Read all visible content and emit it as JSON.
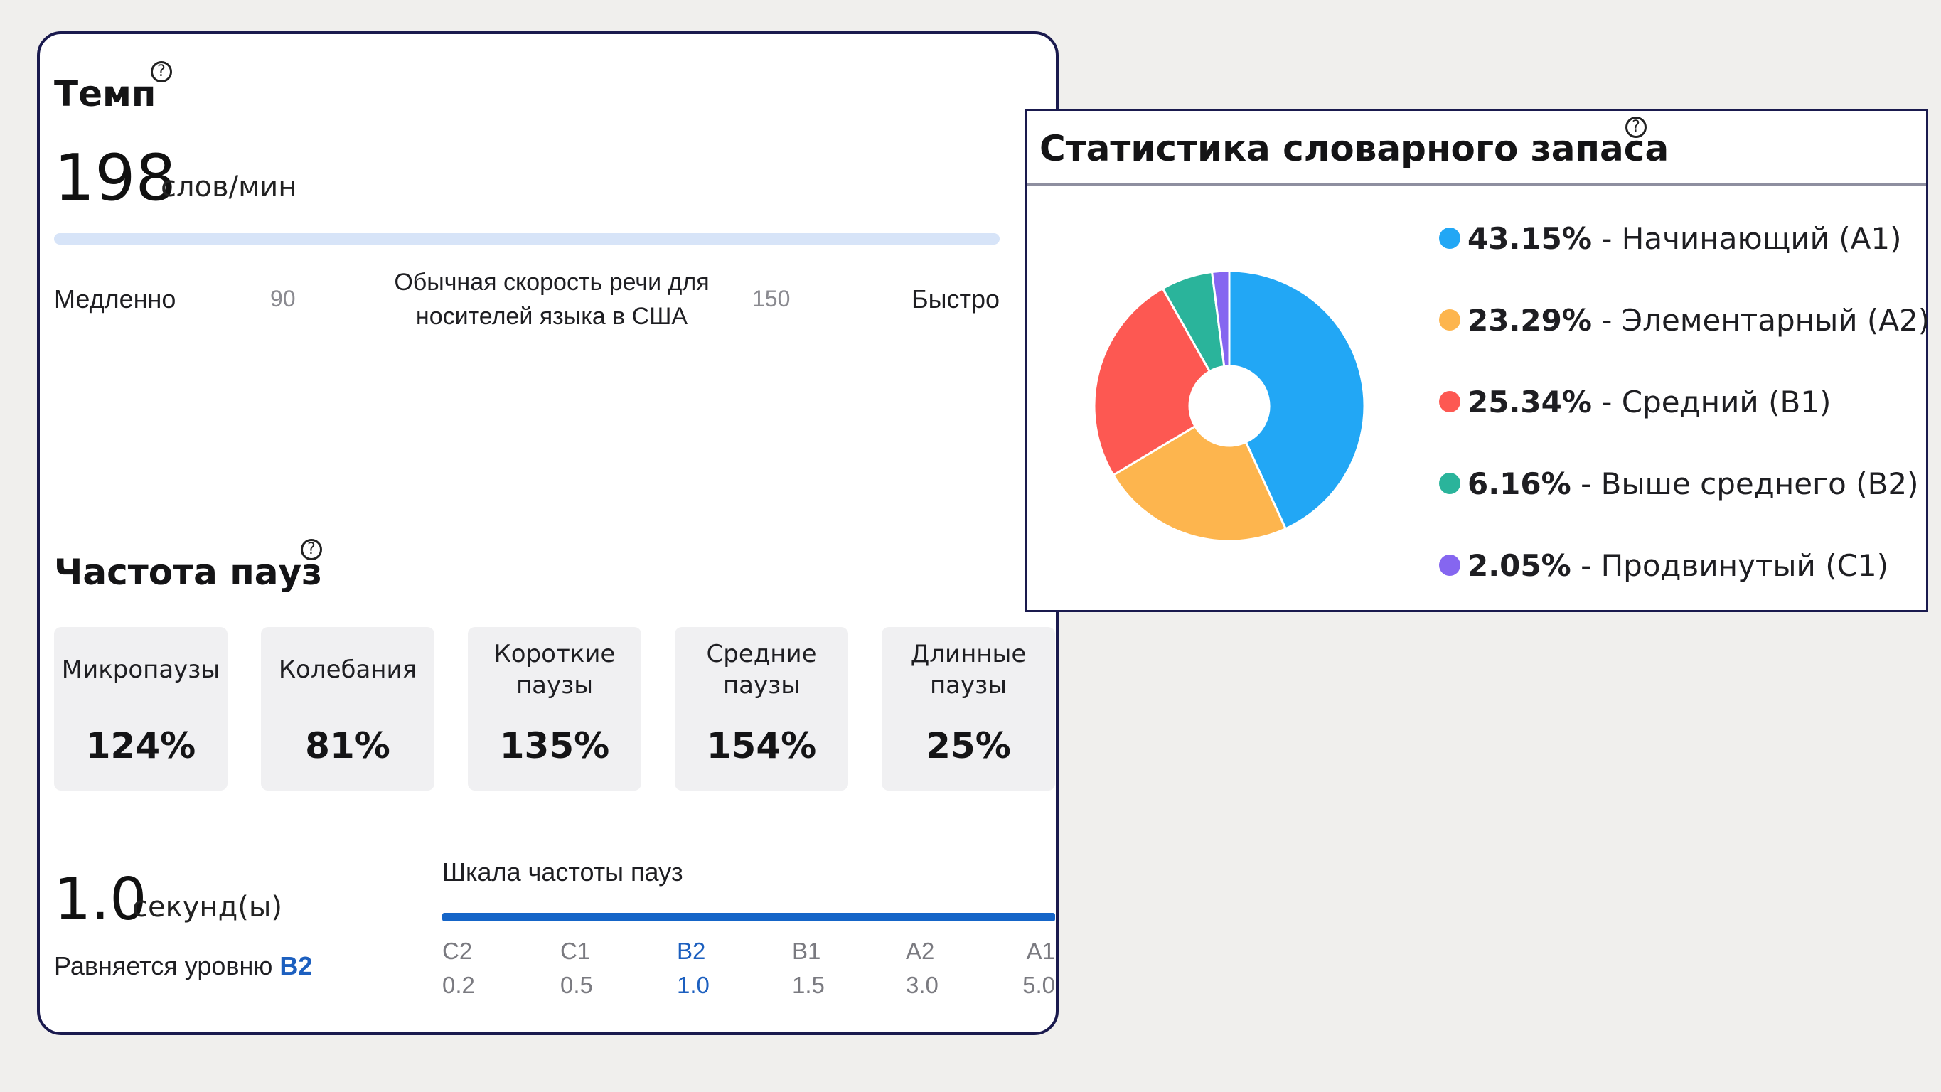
{
  "tempo": {
    "title": "Темп",
    "value": "198",
    "unit": "слов/мин",
    "slow_label": "Медленно",
    "fast_label": "Быстро",
    "low_mark": "90",
    "high_mark": "150",
    "normal_line1": "Обычная скорость речи для",
    "normal_line2": "носителей языка в США"
  },
  "pauses": {
    "title": "Частота пауз",
    "items": [
      {
        "line1": "Микропаузы",
        "line2": "",
        "value": "124%"
      },
      {
        "line1": "Колебания",
        "line2": "",
        "value": "81%"
      },
      {
        "line1": "Короткие",
        "line2": "паузы",
        "value": "135%"
      },
      {
        "line1": "Средние",
        "line2": "паузы",
        "value": "154%"
      },
      {
        "line1": "Длинные",
        "line2": "паузы",
        "value": "25%"
      }
    ],
    "seconds_value": "1.0",
    "seconds_unit": "секунд(ы)",
    "level_prefix": "Равняется уровню",
    "level_value": "B2",
    "scale_title": "Шкала частоты пауз",
    "scale": [
      {
        "level": "C2",
        "value": "0.2",
        "active": false
      },
      {
        "level": "C1",
        "value": "0.5",
        "active": false
      },
      {
        "level": "B2",
        "value": "1.0",
        "active": true
      },
      {
        "level": "B1",
        "value": "1.5",
        "active": false
      },
      {
        "level": "A2",
        "value": "3.0",
        "active": false
      },
      {
        "level": "A1",
        "value": "5.0",
        "active": false
      }
    ]
  },
  "vocab": {
    "title": "Статистика словарного запаса",
    "legend": [
      {
        "pct": "43.15%",
        "label": "- Начинающий (A1)"
      },
      {
        "pct": "23.29%",
        "label": "- Элементарный (A2)"
      },
      {
        "pct": "25.34%",
        "label": "- Средний (B1)"
      },
      {
        "pct": "6.16%",
        "label": "- Выше среднего (B2)"
      },
      {
        "pct": "2.05%",
        "label": "- Продвинутый (C1)"
      }
    ]
  },
  "chart_data": {
    "type": "pie",
    "categories": [
      "Начинающий (A1)",
      "Элементарный (A2)",
      "Средний (B1)",
      "Выше среднего (B2)",
      "Продвинутый (C1)"
    ],
    "values": [
      43.15,
      23.29,
      25.34,
      6.16,
      2.05
    ],
    "colors": [
      "#22a7f5",
      "#fdb54e",
      "#fd5852",
      "#2ab49b",
      "#8566f0"
    ],
    "donut": true,
    "legend": "right"
  }
}
